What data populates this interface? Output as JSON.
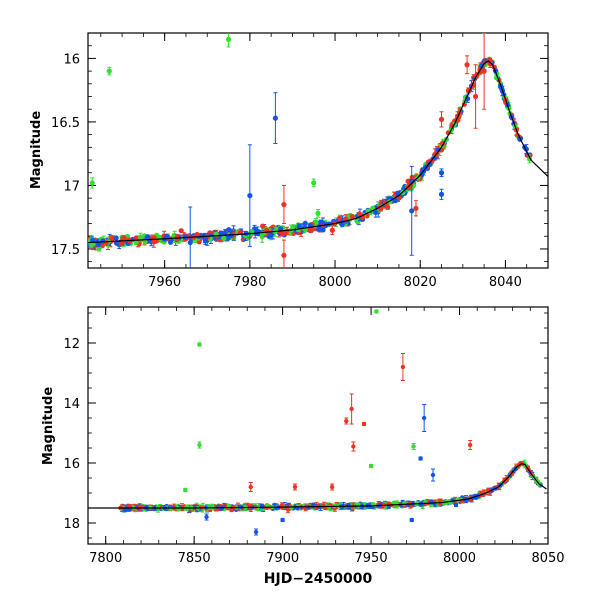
{
  "chart_data": [
    {
      "type": "scatter",
      "title": "",
      "xlabel": "",
      "ylabel": "Magnitude",
      "xlim": [
        7942,
        8050
      ],
      "ylim": [
        17.65,
        15.8
      ],
      "y_inverted": true,
      "x_ticks": [
        "7960",
        "7980",
        "8000",
        "8020",
        "8040"
      ],
      "y_ticks": [
        "16",
        "16.5",
        "17",
        "17.5"
      ],
      "grid": false,
      "series_colors": [
        "#1155ee",
        "#33dd33",
        "#ee3322"
      ],
      "model_curve": {
        "x": [
          7942,
          7960,
          7980,
          7990,
          8000,
          8005,
          8010,
          8015,
          8020,
          8025,
          8028,
          8031,
          8033,
          8035,
          8036,
          8037,
          8039,
          8041,
          8043,
          8046,
          8050
        ],
        "y": [
          17.45,
          17.42,
          17.38,
          17.35,
          17.3,
          17.26,
          17.18,
          17.08,
          16.92,
          16.7,
          16.52,
          16.3,
          16.15,
          16.04,
          16.02,
          16.05,
          16.22,
          16.42,
          16.6,
          16.8,
          16.93
        ]
      },
      "outliers": [
        {
          "series": 1,
          "x": 7947,
          "y": 16.1,
          "err": 0.03
        },
        {
          "series": 1,
          "x": 7975,
          "y": 15.85,
          "err": 0.06
        },
        {
          "series": 0,
          "x": 7986,
          "y": 16.47,
          "err": 0.2
        },
        {
          "series": 0,
          "x": 7980,
          "y": 17.08,
          "err": 0.4
        },
        {
          "series": 0,
          "x": 7966,
          "y": 17.45,
          "err": 0.28
        },
        {
          "series": 0,
          "x": 8018,
          "y": 17.2,
          "err": 0.35
        },
        {
          "series": 2,
          "x": 7988,
          "y": 17.15,
          "err": 0.15
        },
        {
          "series": 2,
          "x": 7988,
          "y": 17.55,
          "err": 0.12
        },
        {
          "series": 2,
          "x": 8031,
          "y": 16.05,
          "err": 0.07
        },
        {
          "series": 2,
          "x": 8033,
          "y": 16.3,
          "err": 0.25
        },
        {
          "series": 2,
          "x": 8035,
          "y": 16.1,
          "err": 0.3
        },
        {
          "series": 2,
          "x": 8025,
          "y": 16.48,
          "err": 0.06
        },
        {
          "series": 2,
          "x": 8019,
          "y": 17.18,
          "err": 0.06
        },
        {
          "series": 1,
          "x": 7943,
          "y": 16.98,
          "err": 0.04
        },
        {
          "series": 1,
          "x": 7996,
          "y": 17.22,
          "err": 0.03
        },
        {
          "series": 1,
          "x": 7995,
          "y": 16.98,
          "err": 0.03
        },
        {
          "series": 0,
          "x": 8025,
          "y": 16.9,
          "err": 0.03
        },
        {
          "series": 0,
          "x": 8025,
          "y": 17.07,
          "err": 0.04
        }
      ]
    },
    {
      "type": "scatter",
      "title": "",
      "xlabel": "HJD−2450000",
      "ylabel": "Magnitude",
      "xlim": [
        7790,
        8050
      ],
      "ylim": [
        18.7,
        10.8
      ],
      "y_inverted": true,
      "x_ticks": [
        "7800",
        "7850",
        "7900",
        "7950",
        "8000",
        "8050"
      ],
      "y_ticks": [
        "12",
        "14",
        "16",
        "18"
      ],
      "grid": false,
      "series_colors": [
        "#1155ee",
        "#33dd33",
        "#ee3322"
      ],
      "model_curve": {
        "x": [
          7790,
          7850,
          7900,
          7950,
          7990,
          8005,
          8015,
          8022,
          8028,
          8032,
          8035,
          8037,
          8041,
          8045,
          8050
        ],
        "y": [
          17.5,
          17.5,
          17.47,
          17.43,
          17.32,
          17.2,
          17.0,
          16.8,
          16.45,
          16.15,
          16.02,
          16.05,
          16.4,
          16.7,
          16.9
        ]
      },
      "outliers": [
        {
          "series": 1,
          "x": 7953,
          "y": 10.95,
          "err": 0.05
        },
        {
          "series": 1,
          "x": 7853,
          "y": 12.05,
          "err": 0.05
        },
        {
          "series": 2,
          "x": 7968,
          "y": 12.8,
          "err": 0.45
        },
        {
          "series": 2,
          "x": 7939,
          "y": 14.2,
          "err": 0.5
        },
        {
          "series": 2,
          "x": 7936,
          "y": 14.6,
          "err": 0.1
        },
        {
          "series": 2,
          "x": 7946,
          "y": 14.7,
          "err": 0.05
        },
        {
          "series": 2,
          "x": 7940,
          "y": 15.45,
          "err": 0.15
        },
        {
          "series": 2,
          "x": 8006,
          "y": 15.4,
          "err": 0.15
        },
        {
          "series": 0,
          "x": 7980,
          "y": 14.5,
          "err": 0.45
        },
        {
          "series": 1,
          "x": 7853,
          "y": 15.4,
          "err": 0.1
        },
        {
          "series": 1,
          "x": 7950,
          "y": 16.1,
          "err": 0.05
        },
        {
          "series": 1,
          "x": 7974,
          "y": 15.45,
          "err": 0.1
        },
        {
          "series": 0,
          "x": 7985,
          "y": 16.4,
          "err": 0.2
        },
        {
          "series": 0,
          "x": 7978,
          "y": 15.85,
          "err": 0.05
        },
        {
          "series": 1,
          "x": 7845,
          "y": 16.9,
          "err": 0.05
        },
        {
          "series": 2,
          "x": 7928,
          "y": 16.8,
          "err": 0.1
        },
        {
          "series": 2,
          "x": 7882,
          "y": 16.8,
          "err": 0.15
        },
        {
          "series": 2,
          "x": 7907,
          "y": 16.8,
          "err": 0.1
        },
        {
          "series": 0,
          "x": 7885,
          "y": 18.3,
          "err": 0.1
        },
        {
          "series": 0,
          "x": 7857,
          "y": 17.8,
          "err": 0.1
        },
        {
          "series": 0,
          "x": 7900,
          "y": 17.9,
          "err": 0.05
        },
        {
          "series": 0,
          "x": 7973,
          "y": 17.9,
          "err": 0.05
        },
        {
          "series": 0,
          "x": 7998,
          "y": 17.4,
          "err": 0.05
        }
      ]
    }
  ]
}
